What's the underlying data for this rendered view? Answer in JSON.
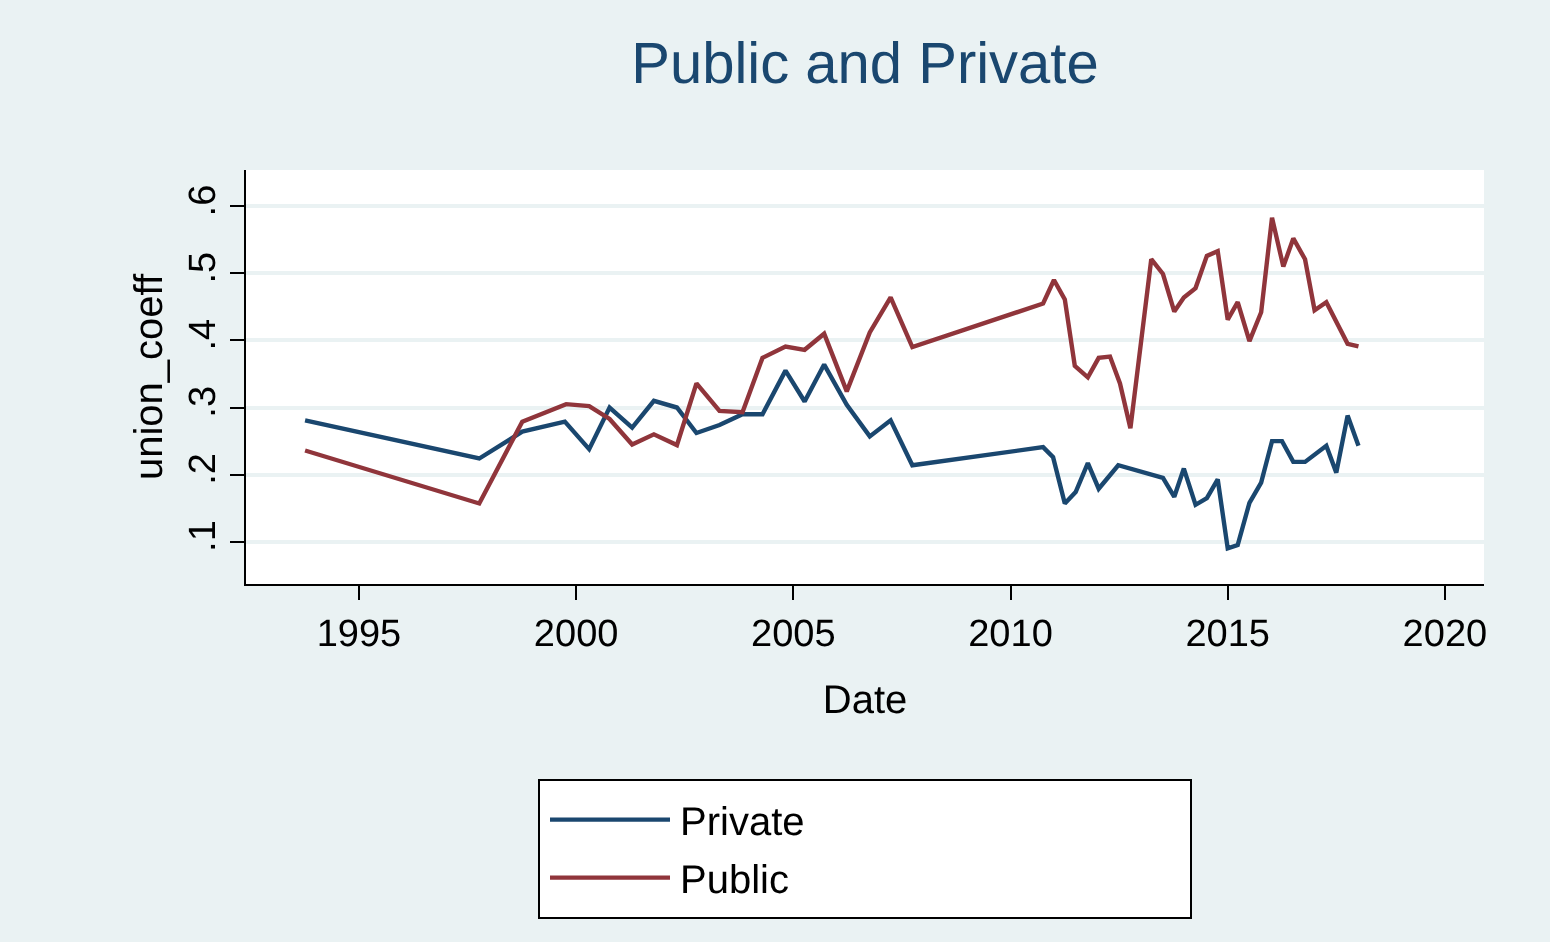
{
  "chart_data": {
    "type": "line",
    "title": "Public and Private",
    "xlabel": "Date",
    "ylabel": "union_coeff",
    "xlim": [
      1992.4,
      2020.9
    ],
    "xticks": [
      1995,
      2000,
      2005,
      2010,
      2015,
      2020
    ],
    "ylim": [
      0.037,
      0.654
    ],
    "yticks": [
      {
        "value": 0.1,
        "label": ".1"
      },
      {
        "value": 0.2,
        "label": ".2"
      },
      {
        "value": 0.3,
        "label": ".3"
      },
      {
        "value": 0.4,
        "label": ".4"
      },
      {
        "value": 0.5,
        "label": ".5"
      },
      {
        "value": 0.6,
        "label": ".6"
      }
    ],
    "grid": "y",
    "legend": "bottom",
    "marker": "none",
    "line_style": "solid",
    "series": [
      {
        "name": "Private",
        "color": "#1a476f",
        "x": [
          1993.76,
          1997.77,
          1998.76,
          1999.74,
          2000.3,
          2000.77,
          2001.29,
          2001.79,
          2002.32,
          2002.77,
          2003.3,
          2003.83,
          2004.29,
          2004.82,
          2005.26,
          2005.71,
          2006.23,
          2006.76,
          2007.24,
          2007.74,
          2010.75,
          2010.98,
          2011.25,
          2011.5,
          2011.78,
          2012.03,
          2012.48,
          2013.51,
          2013.77,
          2013.99,
          2014.26,
          2014.52,
          2014.77,
          2015.0,
          2015.23,
          2015.5,
          2015.77,
          2016.02,
          2016.25,
          2016.51,
          2016.78,
          2017.27,
          2017.5,
          2017.76,
          2018.01
        ],
        "values": [
          0.281,
          0.224,
          0.264,
          0.279,
          0.238,
          0.3,
          0.27,
          0.31,
          0.3,
          0.262,
          0.274,
          0.29,
          0.29,
          0.355,
          0.309,
          0.364,
          0.304,
          0.257,
          0.281,
          0.214,
          0.241,
          0.226,
          0.157,
          0.174,
          0.217,
          0.179,
          0.214,
          0.195,
          0.167,
          0.209,
          0.155,
          0.165,
          0.193,
          0.09,
          0.095,
          0.158,
          0.188,
          0.25,
          0.25,
          0.219,
          0.219,
          0.243,
          0.203,
          0.288,
          0.243
        ]
      },
      {
        "name": "Public",
        "color": "#90353b",
        "x": [
          1993.76,
          1997.77,
          1998.76,
          1999.77,
          2000.3,
          2000.77,
          2001.29,
          2001.79,
          2002.32,
          2002.77,
          2003.3,
          2003.83,
          2004.29,
          2004.82,
          2005.26,
          2005.71,
          2006.23,
          2006.76,
          2007.24,
          2007.74,
          2010.75,
          2011.0,
          2011.25,
          2011.48,
          2011.78,
          2012.03,
          2012.29,
          2012.52,
          2012.76,
          2013.24,
          2013.51,
          2013.77,
          2013.99,
          2014.26,
          2014.52,
          2014.77,
          2015.0,
          2015.23,
          2015.5,
          2015.77,
          2016.02,
          2016.28,
          2016.51,
          2016.78,
          2017.0,
          2017.27,
          2017.76,
          2018.01
        ],
        "values": [
          0.236,
          0.157,
          0.279,
          0.305,
          0.302,
          0.283,
          0.245,
          0.26,
          0.244,
          0.336,
          0.295,
          0.293,
          0.374,
          0.391,
          0.386,
          0.41,
          0.324,
          0.412,
          0.464,
          0.39,
          0.455,
          0.49,
          0.461,
          0.362,
          0.345,
          0.374,
          0.376,
          0.336,
          0.269,
          0.521,
          0.499,
          0.443,
          0.464,
          0.478,
          0.526,
          0.533,
          0.431,
          0.457,
          0.399,
          0.442,
          0.583,
          0.51,
          0.552,
          0.521,
          0.445,
          0.457,
          0.395,
          0.391
        ]
      }
    ]
  }
}
